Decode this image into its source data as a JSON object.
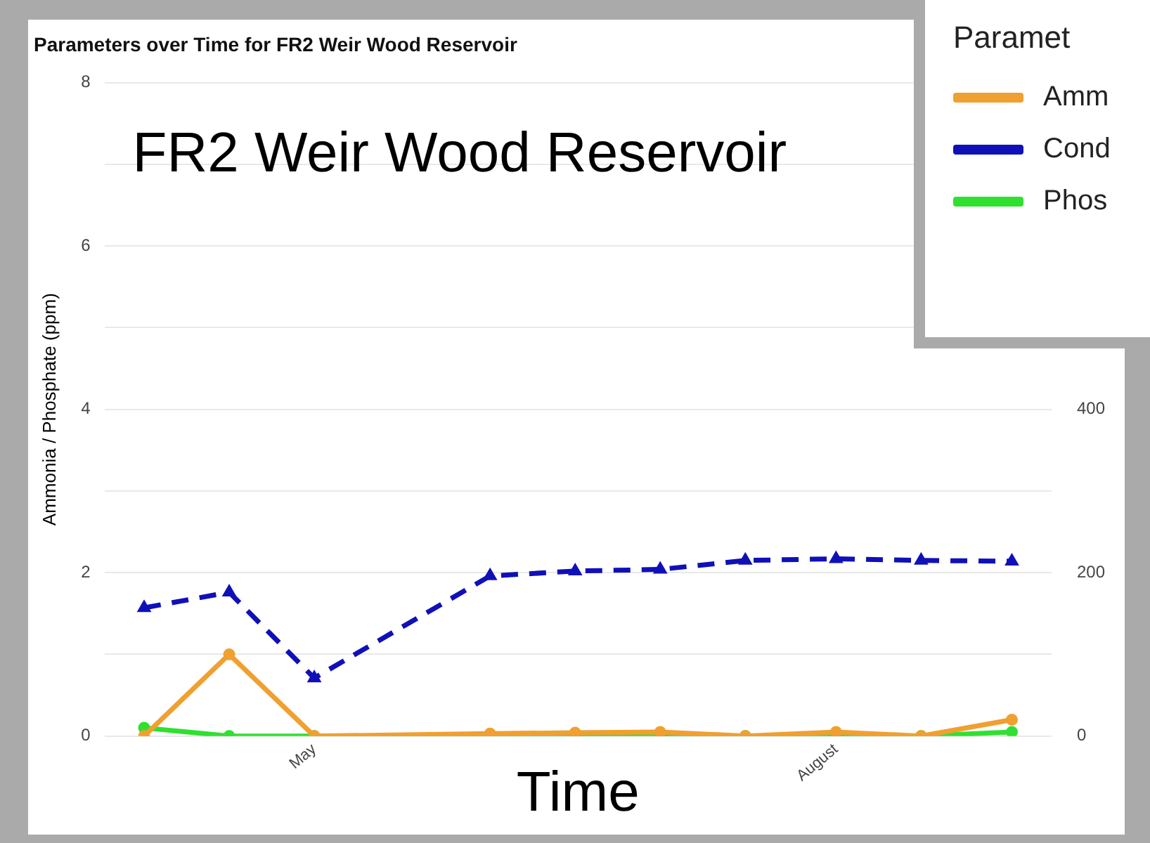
{
  "chart_data": {
    "type": "line",
    "title": "Parameters over Time for FR2 Weir Wood Reservoir",
    "xlabel": "Time",
    "ylabel": "Ammonia / Phosphate (ppm)",
    "legend_title": "Paramet",
    "annotations": [
      "FR2 Weir Wood Reservoir"
    ],
    "x": [
      "--04-01",
      "--04-16",
      "--05-01",
      "--06-01",
      "--06-16",
      "--07-01",
      "--07-16",
      "--08-01",
      "--08-16",
      "--09-01"
    ],
    "series": [
      {
        "name": "Amm",
        "color": "#f0a030",
        "values": [
          0,
          1.0,
          0,
          0.03,
          0.04,
          0.05,
          0,
          0.05,
          0,
          0.2
        ],
        "marker": "circle",
        "line_style": "solid"
      },
      {
        "name": "Cond",
        "color": "#1010b8",
        "axis": "y2",
        "values": [
          157,
          176,
          71,
          196,
          202,
          204,
          215,
          217,
          215,
          214
        ],
        "marker": "triangle",
        "line_style": "dashed"
      },
      {
        "name": "Phos",
        "color": "#30e030",
        "values": [
          0.1,
          0,
          0,
          0,
          0,
          0,
          0,
          0,
          0,
          0.05
        ],
        "marker": "circle",
        "line_style": "solid"
      }
    ],
    "xlim": [
      "--03-25",
      "--09-08"
    ],
    "xticks": [
      {
        "value": "--05-01",
        "label": "May"
      },
      {
        "value": "--08-01",
        "label": "August"
      }
    ],
    "ylim": [
      0,
      8
    ],
    "yticks": [
      0,
      {
        "value": 1,
        "label": null
      },
      2,
      {
        "value": 3,
        "label": null
      },
      4,
      {
        "value": 5,
        "label": null
      },
      6,
      {
        "value": 7,
        "label": null
      },
      8
    ],
    "y2lim": [
      0,
      800
    ],
    "y2ticks": [
      0,
      200,
      400
    ],
    "grid": "y",
    "legend": "top right"
  }
}
